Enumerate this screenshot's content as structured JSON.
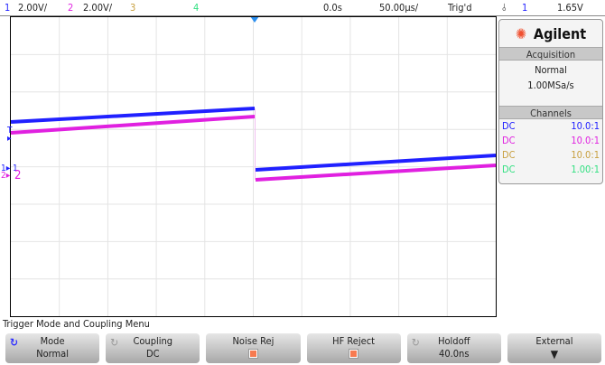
{
  "status_bar": {
    "ch1_num": "1",
    "ch1_scale": "2.00V/",
    "ch2_num": "2",
    "ch2_scale": "2.00V/",
    "ch3_num": "3",
    "ch4_num": "4",
    "delay": "0.0s",
    "timebase": "50.00µs/",
    "trigger_status": "Trig'd",
    "trigger_slope_icon": "rising-edge-icon",
    "trigger_source": "1",
    "trigger_level": "1.65V"
  },
  "colors": {
    "ch1": "#2020ff",
    "ch2": "#e020e0",
    "ch3": "#c8a040",
    "ch4": "#30e080"
  },
  "side_panel": {
    "brand": "Agilent",
    "acquisition_header": "Acquisition",
    "acq_mode": "Normal",
    "sample_rate": "1.00MSa/s",
    "channels_header": "Channels",
    "channels": [
      {
        "coupling": "DC",
        "probe": "10.0:1"
      },
      {
        "coupling": "DC",
        "probe": "10.0:1"
      },
      {
        "coupling": "DC",
        "probe": "10.0:1"
      },
      {
        "coupling": "DC",
        "probe": "1.00:1"
      }
    ]
  },
  "markers": {
    "trigger": "T",
    "ch1": "1",
    "ch2": "2"
  },
  "menu": {
    "title": "Trigger Mode and Coupling Menu",
    "keys": [
      {
        "label": "Mode",
        "value": "Normal"
      },
      {
        "label": "Coupling",
        "value": "DC"
      },
      {
        "label": "Noise Rej",
        "value": ""
      },
      {
        "label": "HF Reject",
        "value": ""
      },
      {
        "label": "Holdoff",
        "value": "40.0ns"
      },
      {
        "label": "External",
        "value": ""
      }
    ]
  }
}
